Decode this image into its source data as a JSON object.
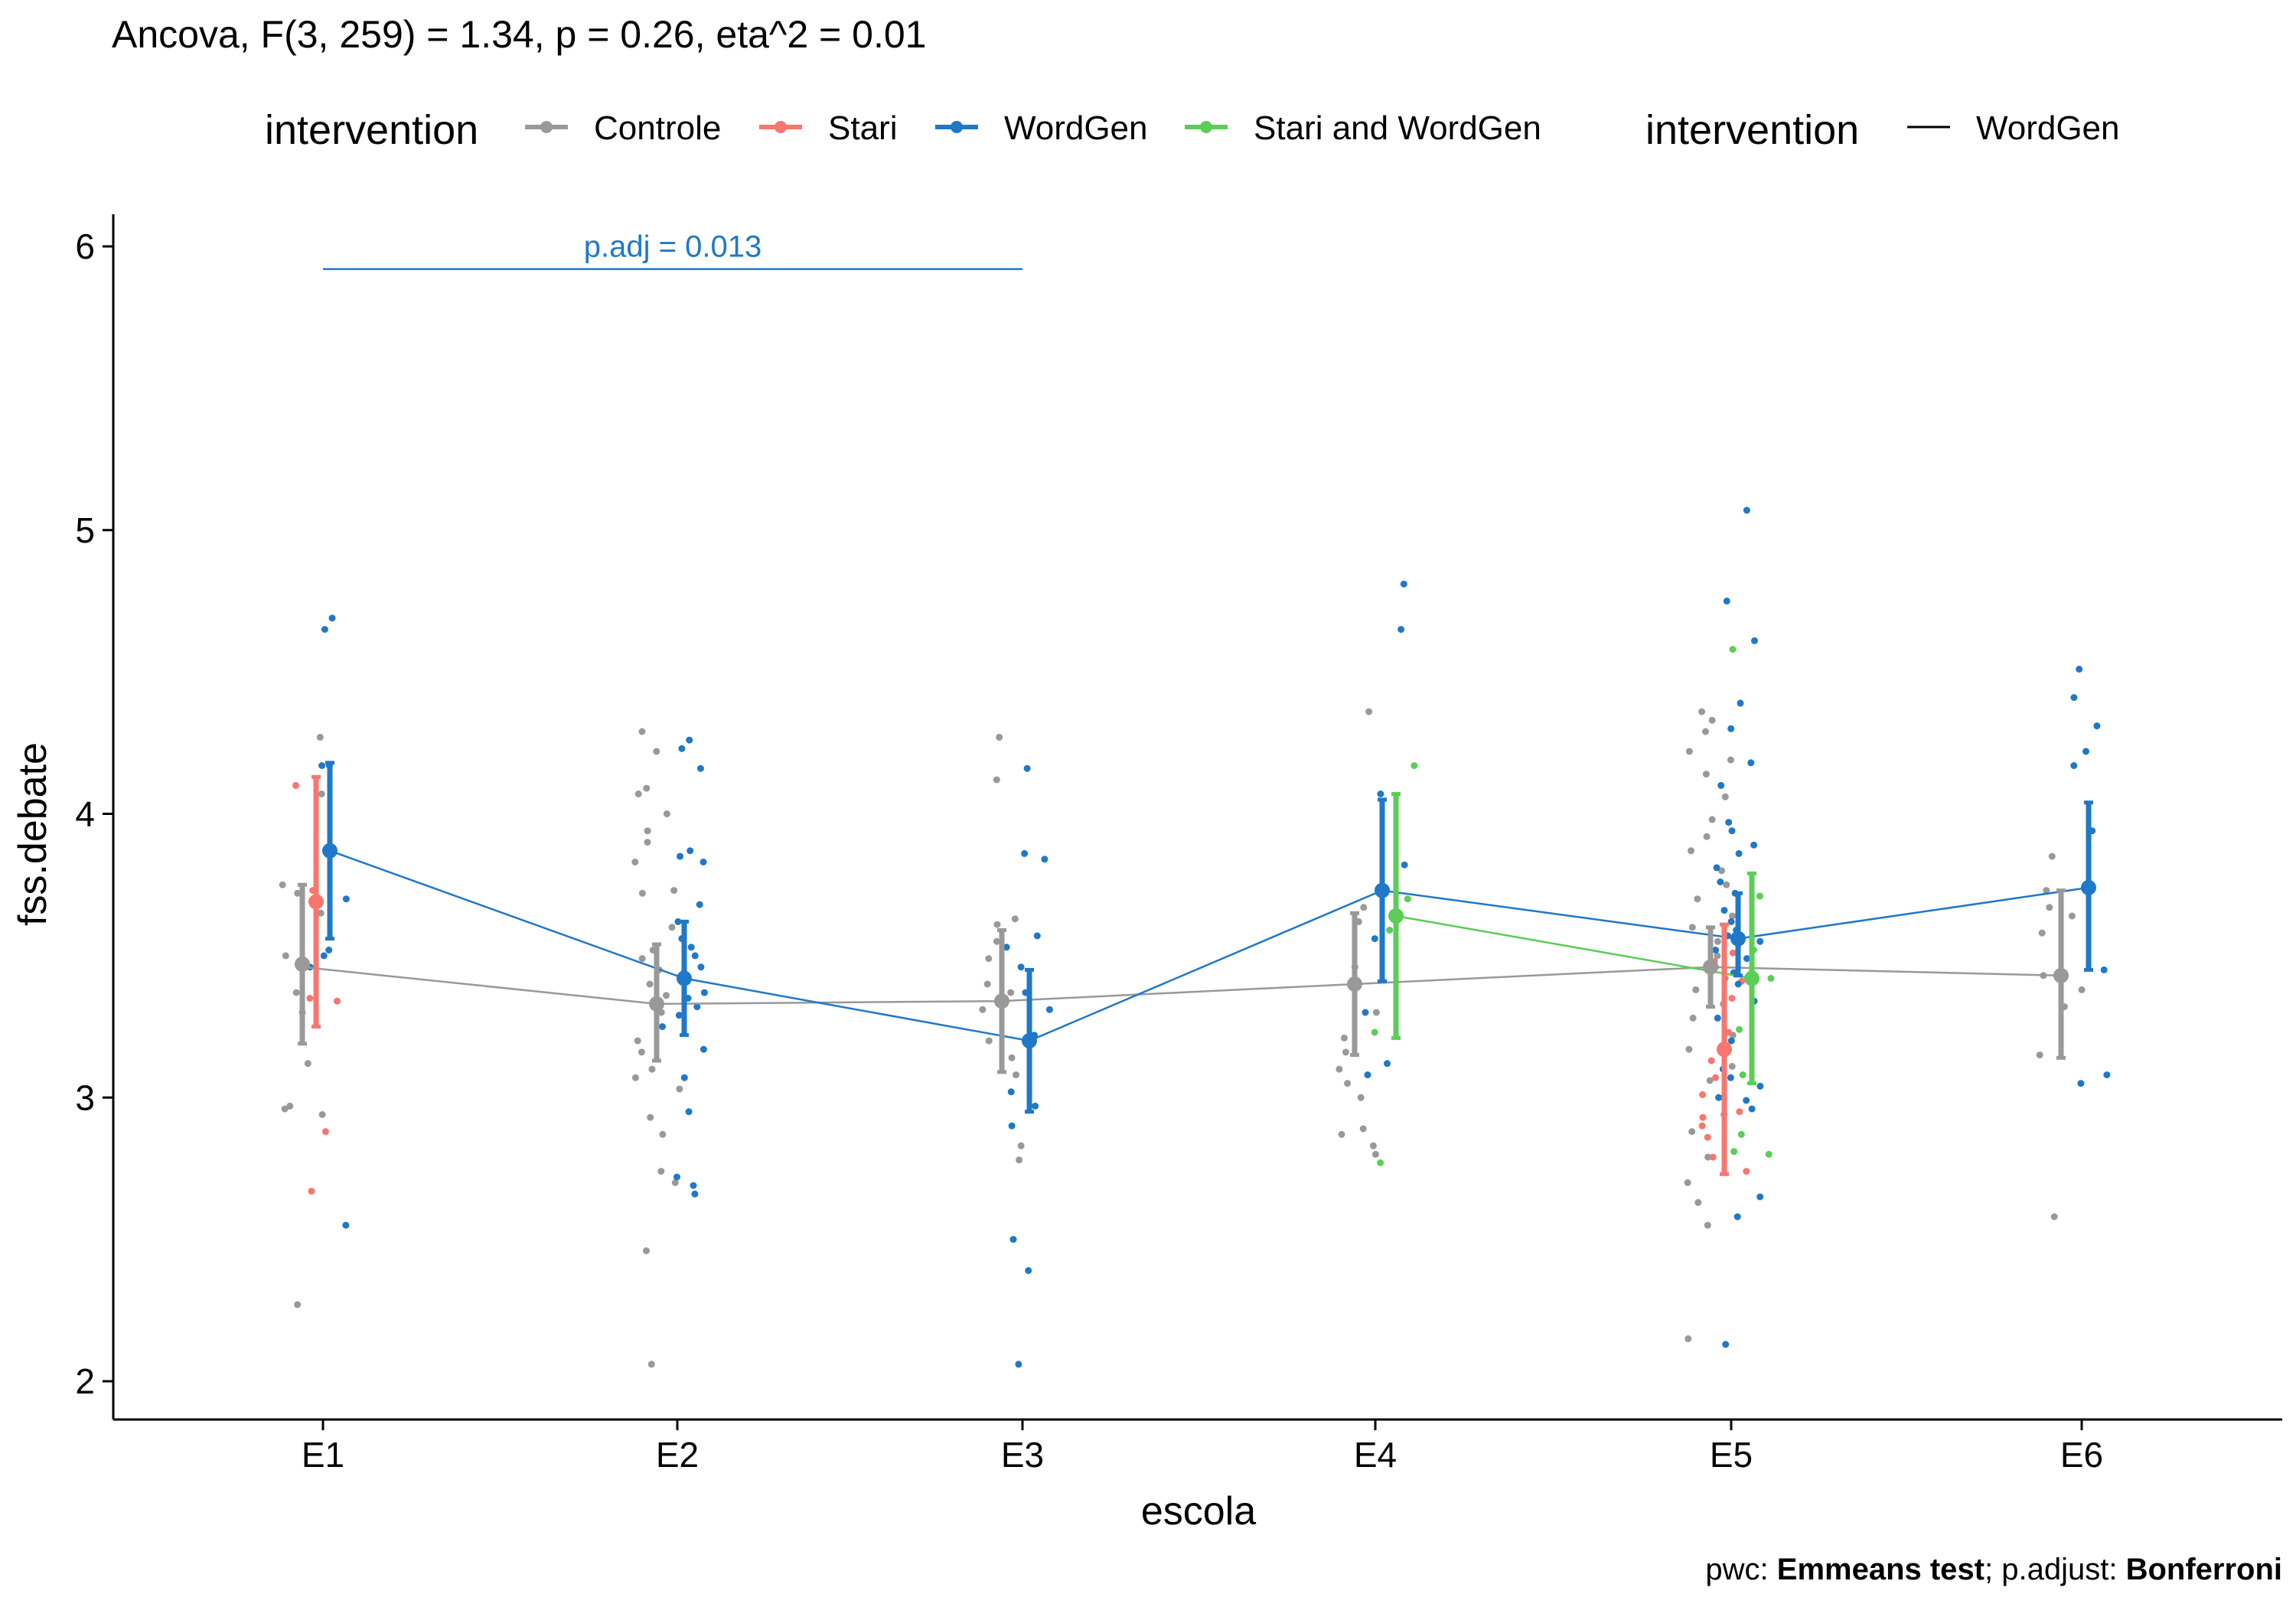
{
  "chart_data": {
    "type": "line",
    "title": "Ancova, F(3, 259) = 1.34, p = 0.26, eta^2 = 0.01",
    "xlabel": "escola",
    "ylabel": "fss.debate",
    "categories": [
      "E1",
      "E2",
      "E3",
      "E4",
      "E5",
      "E6"
    ],
    "ylim": [
      1.87,
      6.07
    ],
    "yticks": [
      2,
      3,
      4,
      5,
      6
    ],
    "grid": false,
    "legend_position": "top",
    "legend": {
      "title": "intervention",
      "items": [
        "Controle",
        "Stari",
        "WordGen",
        "Stari and WordGen"
      ],
      "line_title": "intervention",
      "line_item": "WordGen"
    },
    "colors": {
      "Controle": "#999999",
      "Stari": "#f8766d",
      "WordGen": "#1f78c8",
      "Stari and WordGen": "#5ccd56"
    },
    "series": [
      {
        "name": "Controle",
        "means": [
          3.47,
          3.33,
          3.34,
          3.4,
          3.46,
          3.43
        ],
        "lower": [
          3.19,
          3.13,
          3.09,
          3.15,
          3.32,
          3.14
        ],
        "upper": [
          3.75,
          3.54,
          3.59,
          3.65,
          3.6,
          3.73
        ],
        "line_means": [
          3.46,
          3.33,
          3.34,
          3.4,
          3.46,
          3.43
        ],
        "points": [
          [
            0,
            4.27
          ],
          [
            0,
            4.07
          ],
          [
            0,
            3.75
          ],
          [
            0,
            3.72
          ],
          [
            0,
            3.65
          ],
          [
            0,
            3.5
          ],
          [
            0,
            3.37
          ],
          [
            0,
            3.3
          ],
          [
            0,
            3.12
          ],
          [
            0,
            2.97
          ],
          [
            0,
            2.96
          ],
          [
            0,
            2.94
          ],
          [
            0,
            2.27
          ],
          [
            1,
            4.29
          ],
          [
            1,
            4.22
          ],
          [
            1,
            4.09
          ],
          [
            1,
            4.07
          ],
          [
            1,
            4.0
          ],
          [
            1,
            3.94
          ],
          [
            1,
            3.9
          ],
          [
            1,
            3.83
          ],
          [
            1,
            3.73
          ],
          [
            1,
            3.72
          ],
          [
            1,
            3.6
          ],
          [
            1,
            3.52
          ],
          [
            1,
            3.49
          ],
          [
            1,
            3.45
          ],
          [
            1,
            3.4
          ],
          [
            1,
            3.36
          ],
          [
            1,
            3.3
          ],
          [
            1,
            3.2
          ],
          [
            1,
            3.16
          ],
          [
            1,
            3.1
          ],
          [
            1,
            3.07
          ],
          [
            1,
            3.03
          ],
          [
            1,
            2.93
          ],
          [
            1,
            2.87
          ],
          [
            1,
            2.74
          ],
          [
            1,
            2.7
          ],
          [
            1,
            2.46
          ],
          [
            1,
            2.06
          ],
          [
            2,
            4.27
          ],
          [
            2,
            4.12
          ],
          [
            2,
            3.63
          ],
          [
            2,
            3.61
          ],
          [
            2,
            3.55
          ],
          [
            2,
            3.49
          ],
          [
            2,
            3.4
          ],
          [
            2,
            3.37
          ],
          [
            2,
            3.31
          ],
          [
            2,
            3.2
          ],
          [
            2,
            3.14
          ],
          [
            2,
            3.08
          ],
          [
            2,
            2.83
          ],
          [
            2,
            2.78
          ],
          [
            3,
            4.36
          ],
          [
            3,
            3.67
          ],
          [
            3,
            3.62
          ],
          [
            3,
            3.46
          ],
          [
            3,
            3.3
          ],
          [
            3,
            3.21
          ],
          [
            3,
            3.16
          ],
          [
            3,
            3.1
          ],
          [
            3,
            3.05
          ],
          [
            3,
            3.0
          ],
          [
            3,
            2.89
          ],
          [
            3,
            2.87
          ],
          [
            3,
            2.83
          ],
          [
            3,
            2.8
          ],
          [
            4,
            4.36
          ],
          [
            4,
            4.33
          ],
          [
            4,
            4.29
          ],
          [
            4,
            4.22
          ],
          [
            4,
            4.19
          ],
          [
            4,
            4.14
          ],
          [
            4,
            4.06
          ],
          [
            4,
            3.98
          ],
          [
            4,
            3.92
          ],
          [
            4,
            3.87
          ],
          [
            4,
            3.8
          ],
          [
            4,
            3.75
          ],
          [
            4,
            3.7
          ],
          [
            4,
            3.64
          ],
          [
            4,
            3.6
          ],
          [
            4,
            3.55
          ],
          [
            4,
            3.5
          ],
          [
            4,
            3.46
          ],
          [
            4,
            3.42
          ],
          [
            4,
            3.38
          ],
          [
            4,
            3.33
          ],
          [
            4,
            3.28
          ],
          [
            4,
            3.22
          ],
          [
            4,
            3.17
          ],
          [
            4,
            3.11
          ],
          [
            4,
            3.06
          ],
          [
            4,
            3.0
          ],
          [
            4,
            2.94
          ],
          [
            4,
            2.88
          ],
          [
            4,
            2.79
          ],
          [
            4,
            2.7
          ],
          [
            4,
            2.63
          ],
          [
            4,
            2.55
          ],
          [
            4,
            2.15
          ],
          [
            5,
            3.85
          ],
          [
            5,
            3.73
          ],
          [
            5,
            3.67
          ],
          [
            5,
            3.64
          ],
          [
            5,
            3.58
          ],
          [
            5,
            3.43
          ],
          [
            5,
            3.38
          ],
          [
            5,
            3.32
          ],
          [
            5,
            3.15
          ],
          [
            5,
            2.58
          ]
        ]
      },
      {
        "name": "Stari",
        "means": [
          3.69,
          null,
          null,
          null,
          3.17,
          null
        ],
        "lower": [
          3.25,
          null,
          null,
          null,
          2.73,
          null
        ],
        "upper": [
          4.13,
          null,
          null,
          null,
          3.61,
          null
        ],
        "points": [
          [
            0,
            4.1
          ],
          [
            0,
            3.73
          ],
          [
            0,
            3.35
          ],
          [
            0,
            3.34
          ],
          [
            0,
            2.88
          ],
          [
            0,
            2.67
          ],
          [
            4,
            3.51
          ],
          [
            4,
            3.48
          ],
          [
            4,
            3.41
          ],
          [
            4,
            3.35
          ],
          [
            4,
            3.23
          ],
          [
            4,
            3.13
          ],
          [
            4,
            3.07
          ],
          [
            4,
            3.01
          ],
          [
            4,
            2.95
          ],
          [
            4,
            2.93
          ],
          [
            4,
            2.9
          ],
          [
            4,
            2.86
          ],
          [
            4,
            2.79
          ],
          [
            4,
            2.74
          ]
        ]
      },
      {
        "name": "WordGen",
        "means": [
          3.87,
          3.42,
          3.2,
          3.73,
          3.56,
          3.74
        ],
        "lower": [
          3.56,
          3.22,
          2.95,
          3.41,
          3.43,
          3.45
        ],
        "upper": [
          4.18,
          3.62,
          3.45,
          4.05,
          3.72,
          4.04
        ],
        "points": [
          [
            0,
            4.69
          ],
          [
            0,
            4.65
          ],
          [
            0,
            4.17
          ],
          [
            0,
            4.17
          ],
          [
            0,
            3.7
          ],
          [
            0,
            3.52
          ],
          [
            0,
            3.5
          ],
          [
            0,
            3.46
          ],
          [
            0,
            2.55
          ],
          [
            1,
            4.26
          ],
          [
            1,
            4.23
          ],
          [
            1,
            4.16
          ],
          [
            1,
            3.87
          ],
          [
            1,
            3.85
          ],
          [
            1,
            3.83
          ],
          [
            1,
            3.68
          ],
          [
            1,
            3.62
          ],
          [
            1,
            3.56
          ],
          [
            1,
            3.53
          ],
          [
            1,
            3.5
          ],
          [
            1,
            3.46
          ],
          [
            1,
            3.44
          ],
          [
            1,
            3.37
          ],
          [
            1,
            3.35
          ],
          [
            1,
            3.32
          ],
          [
            1,
            3.29
          ],
          [
            1,
            3.25
          ],
          [
            1,
            3.17
          ],
          [
            1,
            3.07
          ],
          [
            1,
            2.95
          ],
          [
            1,
            2.72
          ],
          [
            1,
            2.69
          ],
          [
            1,
            2.66
          ],
          [
            2,
            4.16
          ],
          [
            2,
            3.86
          ],
          [
            2,
            3.84
          ],
          [
            2,
            3.57
          ],
          [
            2,
            3.53
          ],
          [
            2,
            3.46
          ],
          [
            2,
            3.37
          ],
          [
            2,
            3.31
          ],
          [
            2,
            3.22
          ],
          [
            2,
            3.02
          ],
          [
            2,
            2.97
          ],
          [
            2,
            2.9
          ],
          [
            2,
            2.5
          ],
          [
            2,
            2.39
          ],
          [
            2,
            2.06
          ],
          [
            3,
            4.81
          ],
          [
            3,
            4.65
          ],
          [
            3,
            4.07
          ],
          [
            3,
            3.82
          ],
          [
            3,
            3.56
          ],
          [
            3,
            3.3
          ],
          [
            3,
            3.12
          ],
          [
            3,
            3.08
          ],
          [
            4,
            5.07
          ],
          [
            4,
            4.75
          ],
          [
            4,
            4.61
          ],
          [
            4,
            4.39
          ],
          [
            4,
            4.3
          ],
          [
            4,
            4.18
          ],
          [
            4,
            4.1
          ],
          [
            4,
            3.97
          ],
          [
            4,
            3.94
          ],
          [
            4,
            3.89
          ],
          [
            4,
            3.86
          ],
          [
            4,
            3.81
          ],
          [
            4,
            3.76
          ],
          [
            4,
            3.72
          ],
          [
            4,
            3.66
          ],
          [
            4,
            3.62
          ],
          [
            4,
            3.59
          ],
          [
            4,
            3.57
          ],
          [
            4,
            3.55
          ],
          [
            4,
            3.52
          ],
          [
            4,
            3.49
          ],
          [
            4,
            3.44
          ],
          [
            4,
            3.4
          ],
          [
            4,
            3.34
          ],
          [
            4,
            3.28
          ],
          [
            4,
            3.2
          ],
          [
            4,
            3.1
          ],
          [
            4,
            3.07
          ],
          [
            4,
            3.04
          ],
          [
            4,
            3.0
          ],
          [
            4,
            2.99
          ],
          [
            4,
            2.96
          ],
          [
            4,
            2.65
          ],
          [
            4,
            2.58
          ],
          [
            4,
            2.13
          ],
          [
            5,
            4.51
          ],
          [
            5,
            4.41
          ],
          [
            5,
            4.31
          ],
          [
            5,
            4.22
          ],
          [
            5,
            4.17
          ],
          [
            5,
            3.94
          ],
          [
            5,
            3.45
          ],
          [
            5,
            3.08
          ],
          [
            5,
            3.05
          ]
        ]
      },
      {
        "name": "Stari and WordGen",
        "means": [
          null,
          null,
          null,
          3.64,
          3.42,
          null
        ],
        "lower": [
          null,
          null,
          null,
          3.21,
          3.05,
          null
        ],
        "upper": [
          null,
          null,
          null,
          4.07,
          3.79,
          null
        ],
        "points": [
          [
            3,
            4.17
          ],
          [
            3,
            3.7
          ],
          [
            3,
            3.59
          ],
          [
            3,
            3.23
          ],
          [
            3,
            2.77
          ],
          [
            4,
            4.58
          ],
          [
            4,
            3.71
          ],
          [
            4,
            3.52
          ],
          [
            4,
            3.42
          ],
          [
            4,
            3.24
          ],
          [
            4,
            3.08
          ],
          [
            4,
            2.87
          ],
          [
            4,
            2.81
          ],
          [
            4,
            2.8
          ]
        ]
      }
    ],
    "annotations": [
      {
        "text": "p.adj = 0.013",
        "y": 5.92,
        "x_from": "E1",
        "x_to": "E3",
        "series": "WordGen"
      }
    ],
    "caption": {
      "parts": [
        {
          "text": "pwc: ",
          "bold": false
        },
        {
          "text": "Emmeans test",
          "bold": true
        },
        {
          "text": "; p.adjust: ",
          "bold": false
        },
        {
          "text": "Bonferroni",
          "bold": true
        }
      ]
    }
  }
}
